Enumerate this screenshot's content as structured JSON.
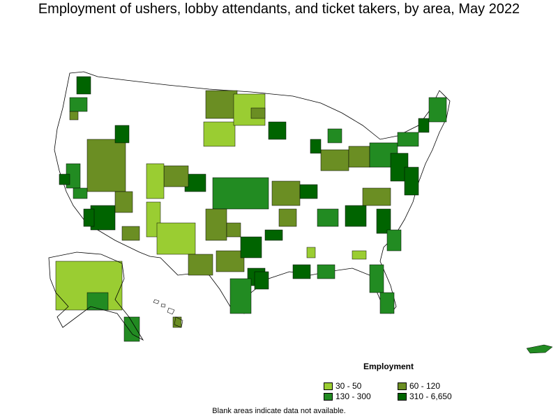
{
  "title": "Employment of ushers, lobby attendants, and ticket takers, by area, May 2022",
  "legend": {
    "title": "Employment",
    "items": [
      {
        "label": "30 - 50",
        "color": "#9acd32"
      },
      {
        "label": "60 - 120",
        "color": "#6b8e23"
      },
      {
        "label": "130 - 300",
        "color": "#228b22"
      },
      {
        "label": "310 - 6,650",
        "color": "#006400"
      }
    ]
  },
  "footnote": "Blank areas indicate data not available.",
  "colors": {
    "blank": "#ffffff",
    "border": "#000000"
  }
}
